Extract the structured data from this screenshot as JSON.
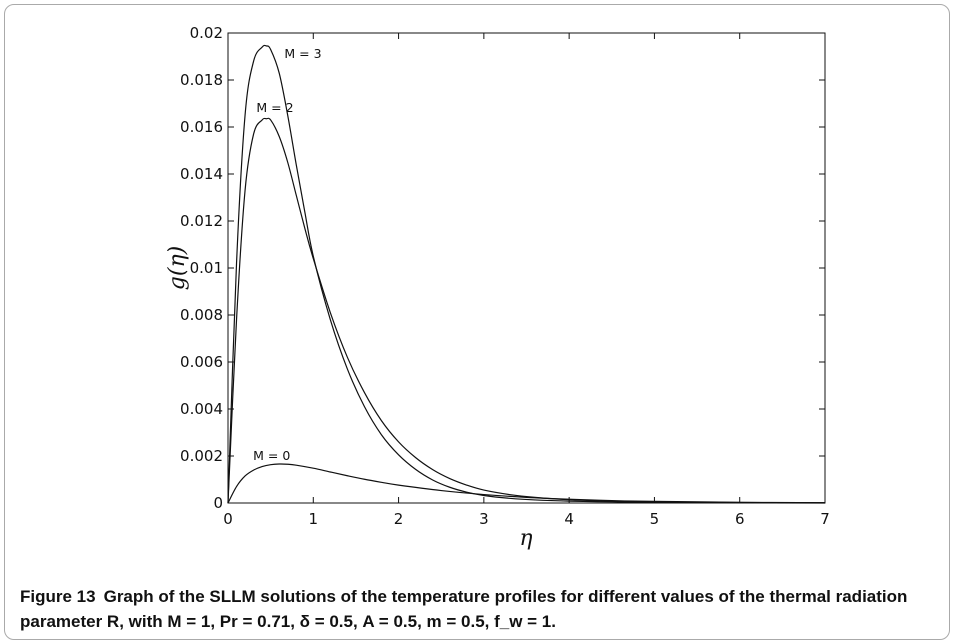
{
  "figure": {
    "number": "Figure 13",
    "caption": "Graph of the SLLM solutions of the temperature profiles for different values of the thermal radiation parameter R, with M = 1, Pr = 0.71, δ = 0.5, A = 0.5, m = 0.5, f_w = 1."
  },
  "chart_data": {
    "type": "line",
    "xlabel": "η",
    "ylabel": "g(η)",
    "xlim": [
      0,
      7
    ],
    "ylim": [
      0,
      0.02
    ],
    "x_ticks": [
      "0",
      "1",
      "2",
      "3",
      "4",
      "5",
      "6",
      "7"
    ],
    "y_ticks": [
      "0",
      "0.002",
      "0.004",
      "0.006",
      "0.008",
      "0.01",
      "0.012",
      "0.014",
      "0.016",
      "0.018",
      "0.02"
    ],
    "grid": false,
    "series": [
      {
        "name": "M = 3",
        "x": [
          0,
          0.1,
          0.2,
          0.3,
          0.4,
          0.45,
          0.5,
          0.6,
          0.7,
          0.8,
          0.9,
          1.0,
          1.2,
          1.4,
          1.6,
          1.8,
          2.0,
          2.2,
          2.4,
          2.6,
          2.8,
          3.0,
          3.3,
          3.6,
          4.0,
          4.5,
          5.0,
          6.0,
          7.0
        ],
        "y": [
          0,
          0.0102,
          0.0165,
          0.0188,
          0.0194,
          0.01945,
          0.0193,
          0.0183,
          0.0165,
          0.0144,
          0.0124,
          0.0105,
          0.0078,
          0.0057,
          0.0041,
          0.0029,
          0.00205,
          0.00143,
          0.00098,
          0.00067,
          0.00046,
          0.00032,
          0.0002,
          0.00013,
          8e-05,
          5e-05,
          3e-05,
          1e-05,
          0.0
        ]
      },
      {
        "name": "M = 2",
        "x": [
          0,
          0.1,
          0.2,
          0.3,
          0.4,
          0.45,
          0.5,
          0.6,
          0.7,
          0.8,
          0.9,
          1.0,
          1.2,
          1.4,
          1.6,
          1.8,
          2.0,
          2.2,
          2.4,
          2.6,
          2.8,
          3.0,
          3.3,
          3.6,
          4.0,
          4.5,
          5.0,
          6.0,
          7.0
        ],
        "y": [
          0,
          0.0078,
          0.0133,
          0.0157,
          0.0163,
          0.01635,
          0.0163,
          0.0156,
          0.0145,
          0.0131,
          0.0117,
          0.0104,
          0.0081,
          0.0062,
          0.0047,
          0.0035,
          0.0026,
          0.00193,
          0.00142,
          0.00104,
          0.00076,
          0.00055,
          0.00036,
          0.00024,
          0.00014,
          8e-05,
          5e-05,
          2e-05,
          1e-05
        ]
      },
      {
        "name": "M = 0",
        "x": [
          0,
          0.1,
          0.2,
          0.3,
          0.4,
          0.5,
          0.6,
          0.7,
          0.8,
          1.0,
          1.2,
          1.4,
          1.6,
          1.8,
          2.0,
          2.5,
          3.0,
          3.5,
          4.0,
          4.5,
          5.0,
          6.0,
          7.0
        ],
        "y": [
          0,
          0.0007,
          0.00115,
          0.0014,
          0.00155,
          0.00163,
          0.00166,
          0.00165,
          0.00161,
          0.00148,
          0.00132,
          0.00116,
          0.00101,
          0.00088,
          0.00076,
          0.00053,
          0.00036,
          0.00024,
          0.00016,
          0.0001,
          7e-05,
          3e-05,
          1e-05
        ]
      }
    ]
  }
}
